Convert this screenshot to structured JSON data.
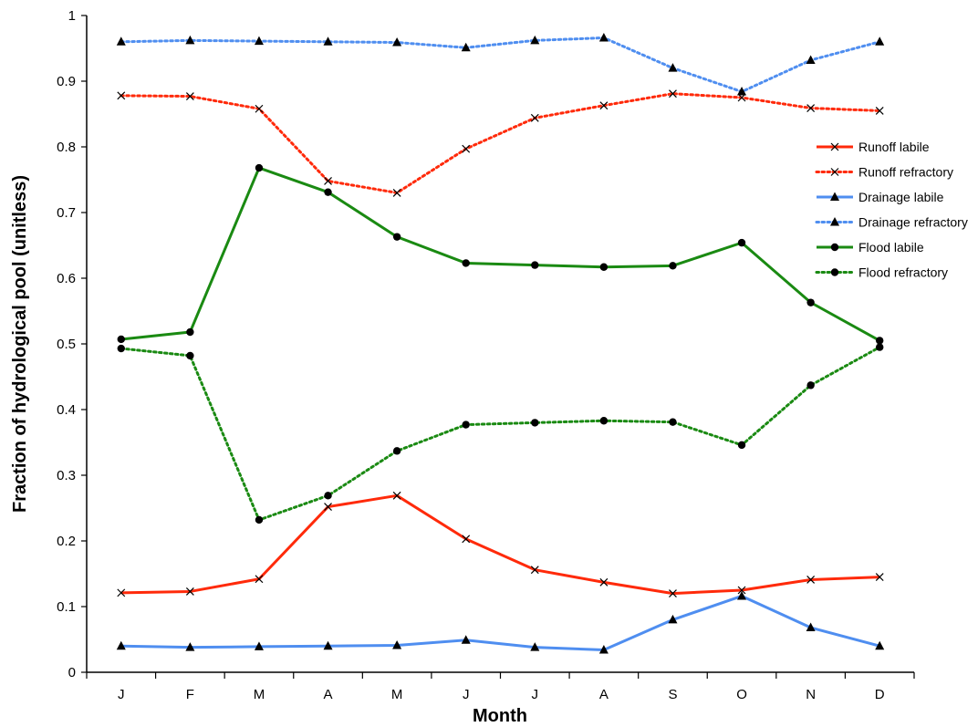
{
  "chart_data": {
    "type": "line",
    "title": "",
    "xlabel": "Month",
    "ylabel": "Fraction of hydrological pool (unitless)",
    "categories": [
      "J",
      "F",
      "M",
      "A",
      "M",
      "J",
      "J",
      "A",
      "S",
      "O",
      "N",
      "D"
    ],
    "ylim": [
      0,
      1
    ],
    "yticks": [
      0,
      0.1,
      0.2,
      0.3,
      0.4,
      0.5,
      0.6,
      0.7,
      0.8,
      0.9,
      1
    ],
    "ytick_labels": [
      "0",
      "0.1",
      "0.2",
      "0.3",
      "0.4",
      "0.5",
      "0.6",
      "0.7",
      "0.8",
      "0.9",
      "1"
    ],
    "grid": false,
    "legend_position": "right",
    "series": [
      {
        "name": "Runoff labile",
        "color": "#ff2a0a",
        "style": "solid",
        "marker": "x",
        "values": [
          0.121,
          0.123,
          0.142,
          0.252,
          0.269,
          0.203,
          0.156,
          0.137,
          0.12,
          0.125,
          0.141,
          0.145
        ]
      },
      {
        "name": "Runoff refractory",
        "color": "#ff2a0a",
        "style": "dotted",
        "marker": "x",
        "values": [
          0.878,
          0.877,
          0.858,
          0.748,
          0.73,
          0.797,
          0.844,
          0.863,
          0.881,
          0.875,
          0.859,
          0.855
        ]
      },
      {
        "name": "Drainage labile",
        "color": "#4f8ef0",
        "style": "solid",
        "marker": "triangle",
        "values": [
          0.04,
          0.038,
          0.039,
          0.04,
          0.041,
          0.049,
          0.038,
          0.034,
          0.08,
          0.116,
          0.068,
          0.04
        ]
      },
      {
        "name": "Drainage refractory",
        "color": "#4f8ef0",
        "style": "dotted",
        "marker": "triangle",
        "values": [
          0.96,
          0.962,
          0.961,
          0.96,
          0.959,
          0.951,
          0.962,
          0.966,
          0.92,
          0.884,
          0.932,
          0.96
        ]
      },
      {
        "name": "Flood labile",
        "color": "#1a8a12",
        "style": "solid",
        "marker": "circle",
        "values": [
          0.507,
          0.518,
          0.768,
          0.731,
          0.663,
          0.623,
          0.62,
          0.617,
          0.619,
          0.654,
          0.563,
          0.505
        ]
      },
      {
        "name": "Flood refractory",
        "color": "#1a8a12",
        "style": "dotted",
        "marker": "circle",
        "values": [
          0.493,
          0.482,
          0.232,
          0.269,
          0.337,
          0.377,
          0.38,
          0.383,
          0.381,
          0.346,
          0.437,
          0.495
        ]
      }
    ]
  }
}
